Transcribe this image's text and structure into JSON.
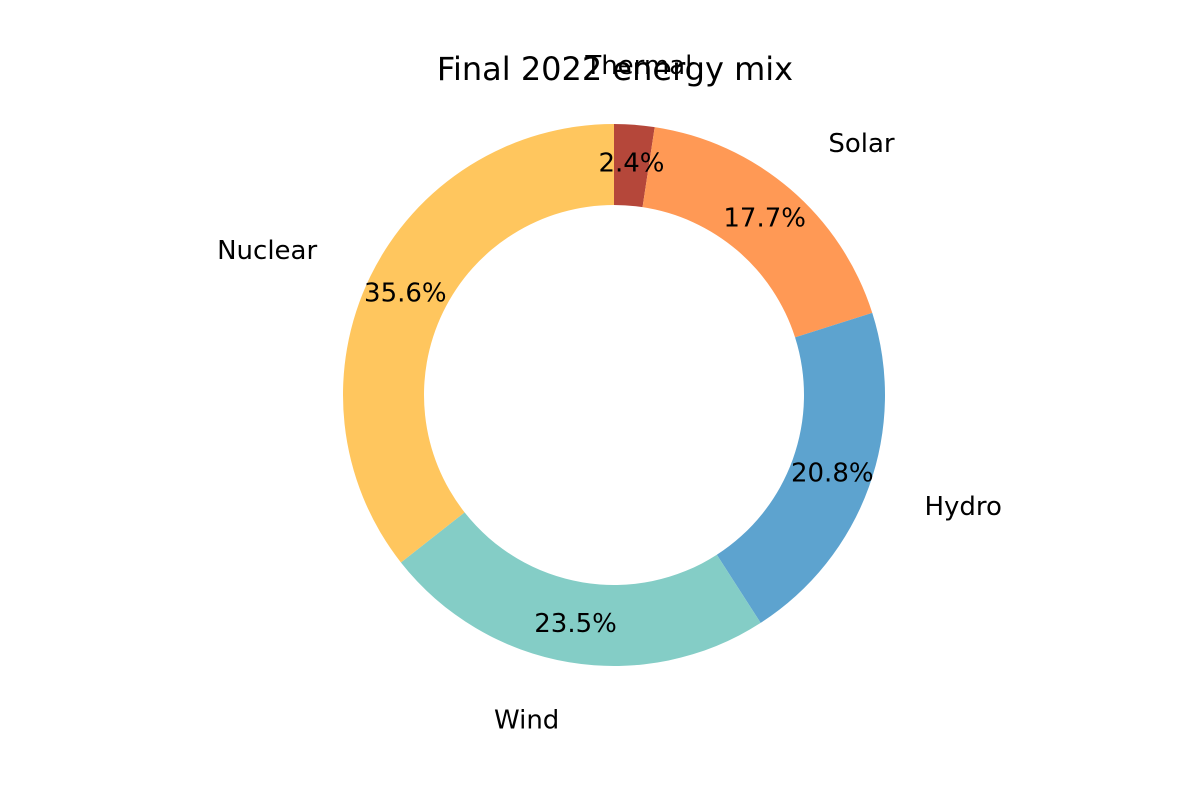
{
  "chart_data": {
    "type": "pie",
    "donut": true,
    "title": "Final 2022 energy mix",
    "slices": [
      {
        "label": "Thermal",
        "value": 2.4,
        "pct_text": "2.4%",
        "color": "#b5473a"
      },
      {
        "label": "Solar",
        "value": 17.7,
        "pct_text": "17.7%",
        "color": "#ff9955"
      },
      {
        "label": "Hydro",
        "value": 20.8,
        "pct_text": "20.8%",
        "color": "#5da3cf"
      },
      {
        "label": "Wind",
        "value": 23.5,
        "pct_text": "23.5%",
        "color": "#84cdc6"
      },
      {
        "label": "Nuclear",
        "value": 35.6,
        "pct_text": "35.6%",
        "color": "#ffc65e"
      }
    ]
  }
}
